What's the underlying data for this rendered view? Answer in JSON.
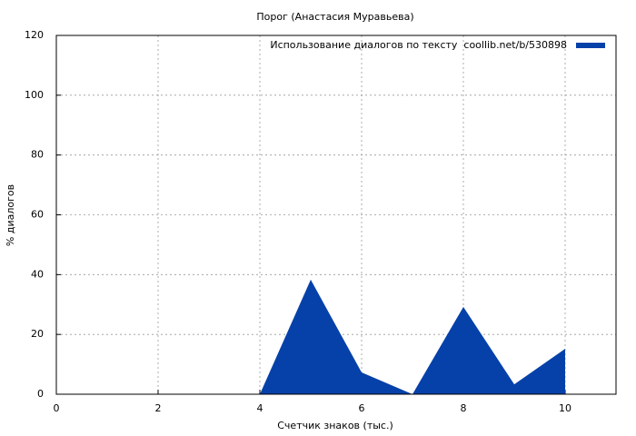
{
  "chart_data": {
    "type": "area",
    "title": "Порог (Анастасия Муравьева)",
    "x_label": "Счетчик знаков (тыс.)",
    "y_label": "% диалогов",
    "x": [
      0,
      1,
      2,
      3,
      4,
      5,
      6,
      7,
      8,
      9,
      10
    ],
    "series": [
      {
        "name": "Использование диалогов по тексту  coollib.net/b/530898",
        "color": "#0641a9",
        "values": [
          0,
          0,
          0,
          0,
          0,
          38.3,
          7.3,
          0,
          29.2,
          3.3,
          15.2
        ]
      }
    ],
    "xlim": [
      0,
      11
    ],
    "ylim": [
      0,
      120
    ],
    "xticks": [
      0,
      2,
      4,
      6,
      8,
      10
    ],
    "yticks": [
      0,
      20,
      40,
      60,
      80,
      100,
      120
    ],
    "grid": true,
    "legend": "top-right"
  }
}
